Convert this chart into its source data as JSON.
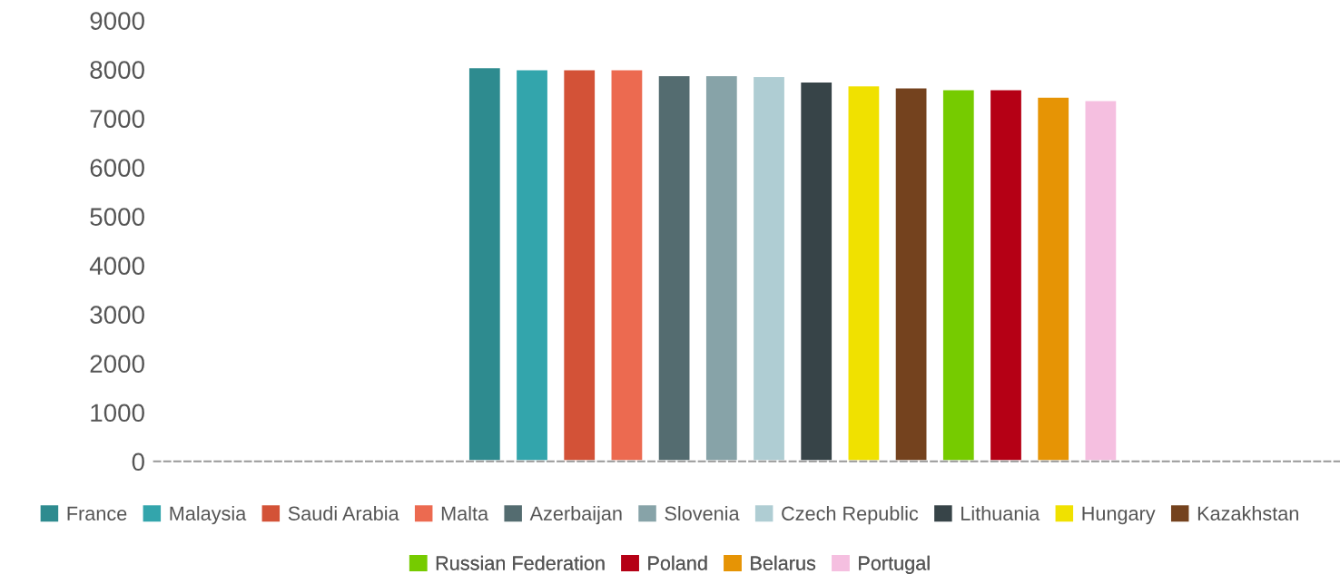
{
  "chart_data": {
    "type": "bar",
    "categories": [
      null
    ],
    "series": [
      {
        "name": "France",
        "color": "#2e8b8f",
        "values": [
          8050
        ]
      },
      {
        "name": "Malaysia",
        "color": "#33a5ac",
        "values": [
          8010
        ]
      },
      {
        "name": "Saudi Arabia",
        "color": "#d35237",
        "values": [
          8010
        ]
      },
      {
        "name": "Malta",
        "color": "#ec6a50",
        "values": [
          8010
        ]
      },
      {
        "name": "Azerbaijan",
        "color": "#546c70",
        "values": [
          7890
        ]
      },
      {
        "name": "Slovenia",
        "color": "#87a3a8",
        "values": [
          7890
        ]
      },
      {
        "name": "Czech Republic",
        "color": "#afcdd3",
        "values": [
          7870
        ]
      },
      {
        "name": "Lithuania",
        "color": "#374448",
        "values": [
          7760
        ]
      },
      {
        "name": "Hungary",
        "color": "#f0e100",
        "values": [
          7680
        ]
      },
      {
        "name": "Kazakhstan",
        "color": "#74421e",
        "values": [
          7640
        ]
      },
      {
        "name": "Russian Federation",
        "color": "#76cb00",
        "values": [
          7600
        ]
      },
      {
        "name": "Poland",
        "color": "#b50015",
        "values": [
          7600
        ]
      },
      {
        "name": "Belarus",
        "color": "#e69405",
        "values": [
          7450
        ]
      },
      {
        "name": "Portugal",
        "color": "#f5bfe0",
        "values": [
          7380
        ]
      }
    ],
    "ylim": [
      0,
      9000
    ],
    "yticks": [
      0,
      1000,
      2000,
      3000,
      4000,
      5000,
      6000,
      7000,
      8000,
      9000
    ],
    "grid": false,
    "legend": "bottom",
    "tick_labels": "y"
  }
}
